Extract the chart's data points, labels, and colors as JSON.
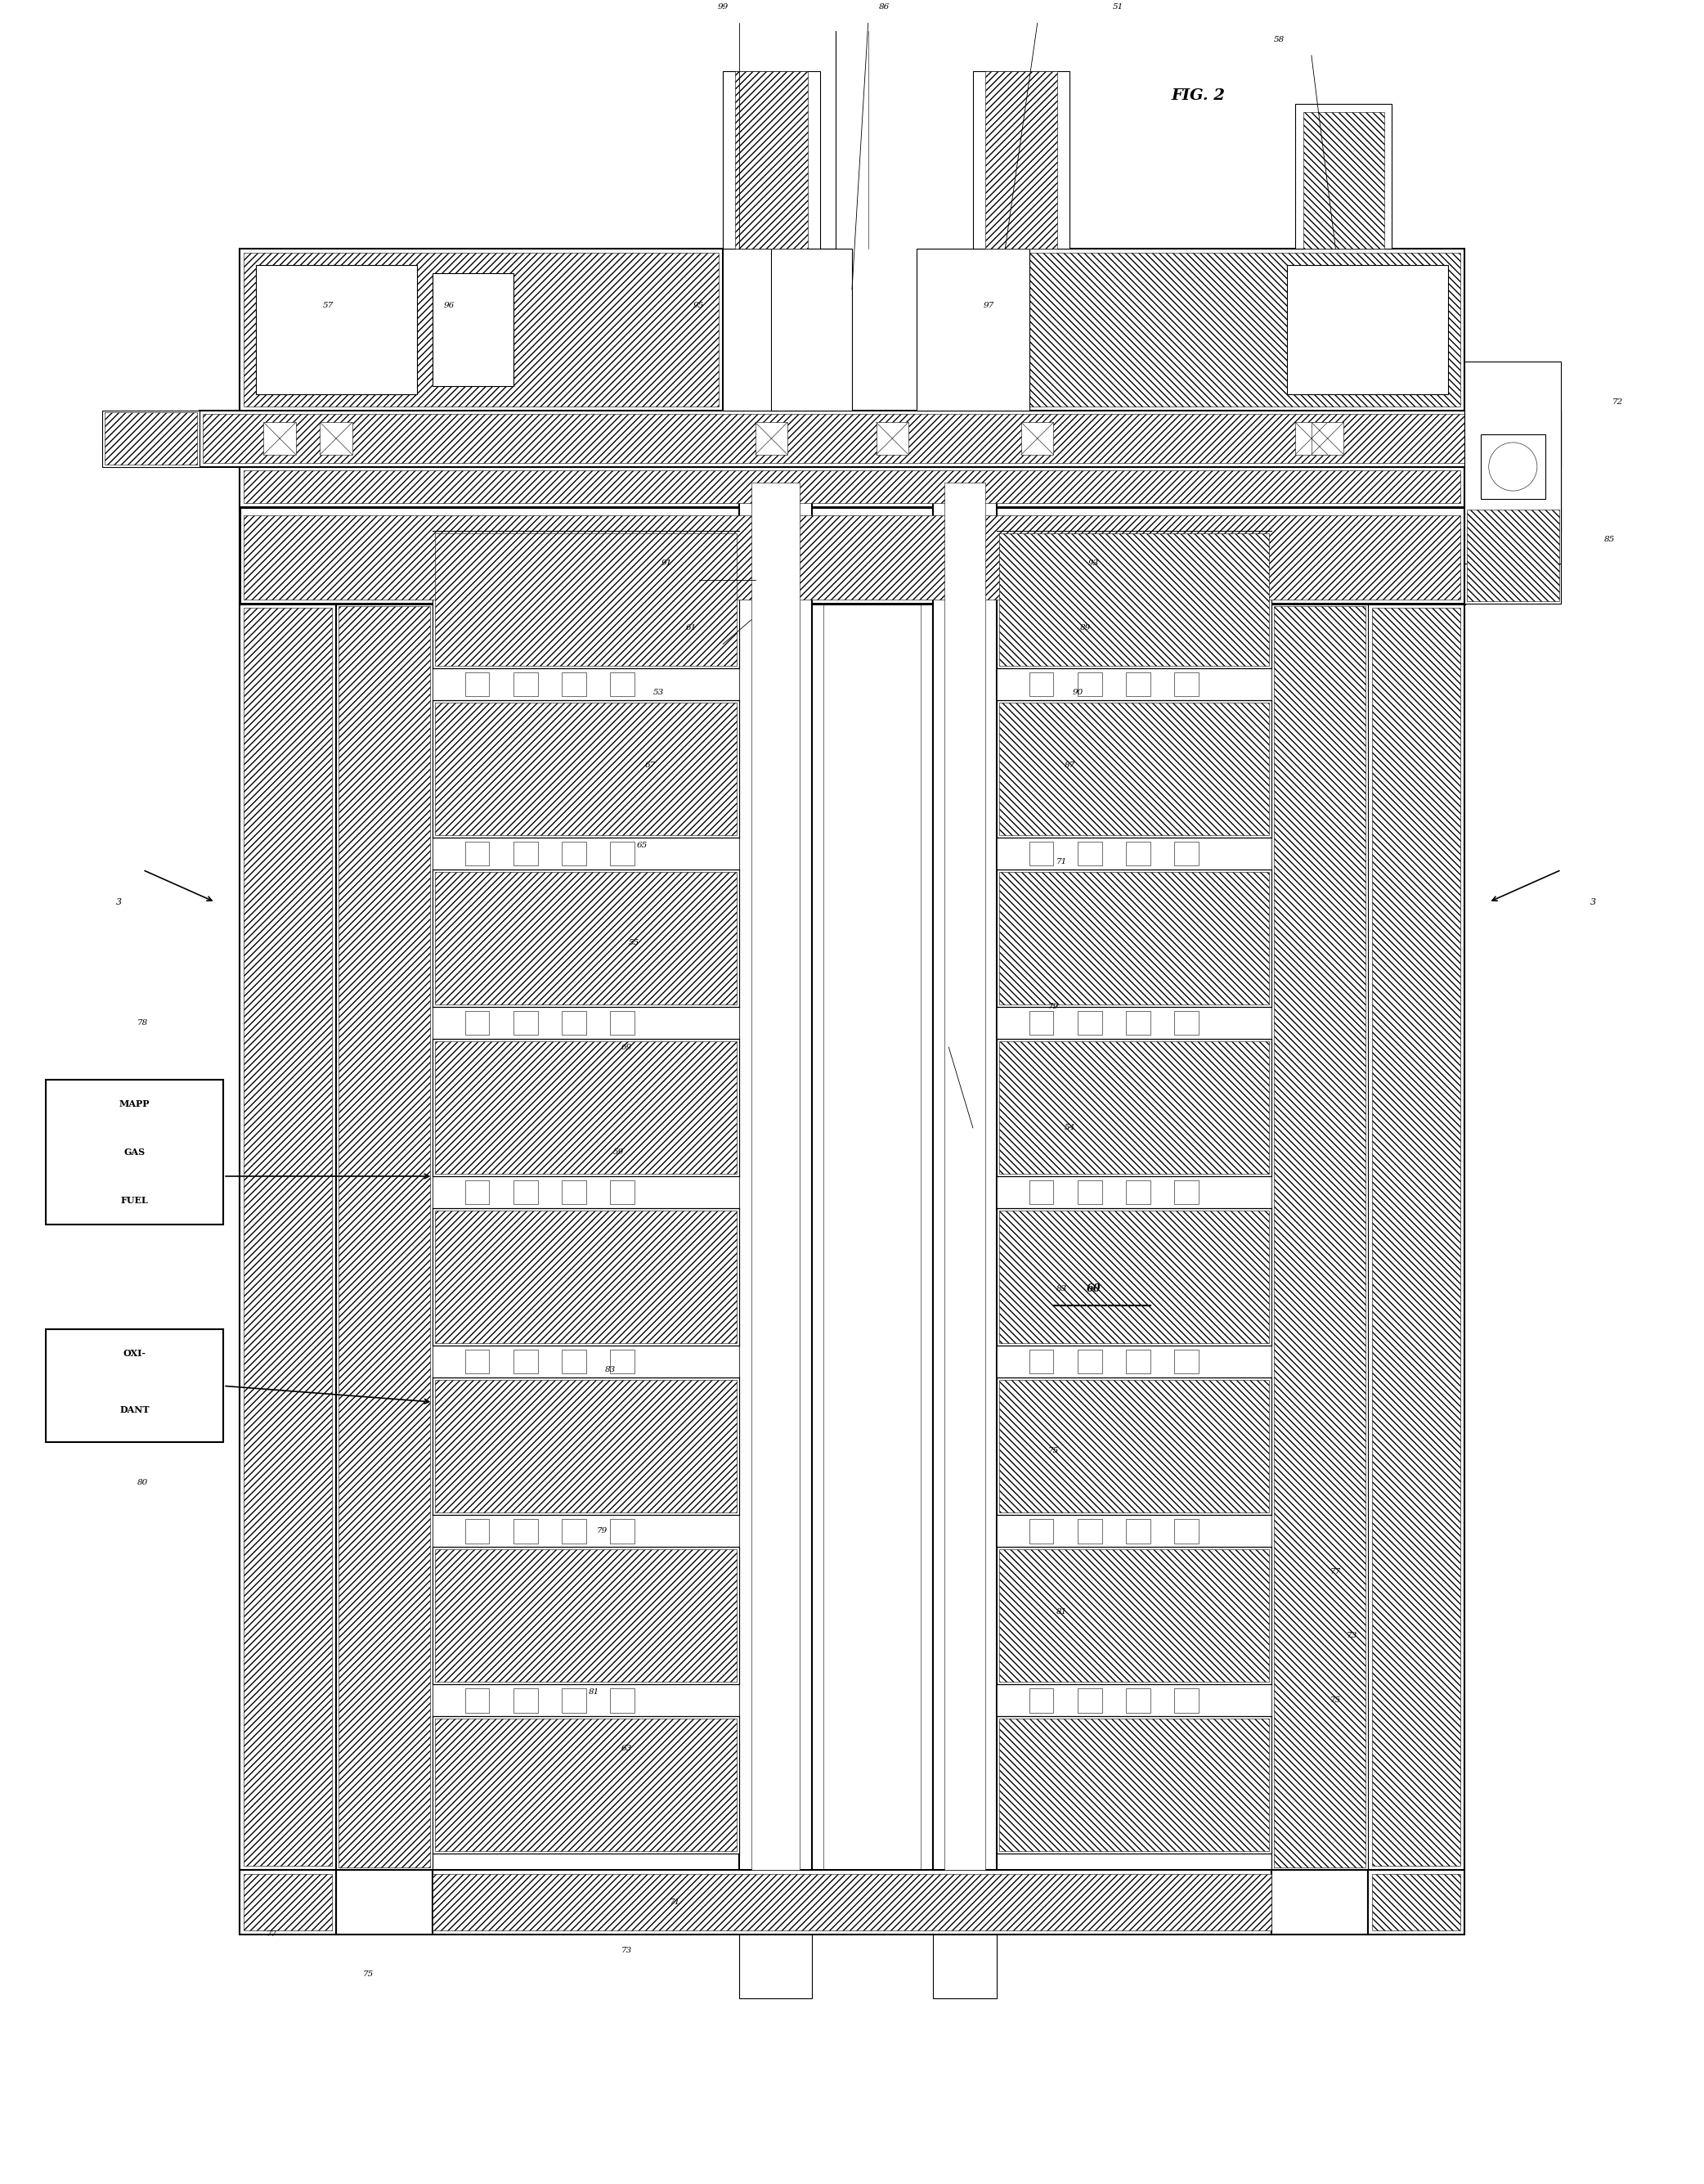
{
  "title": "FIG. 2",
  "bg_color": "#ffffff",
  "fig_width": 20.84,
  "fig_height": 26.7,
  "labels": {
    "fig_title": "FIG. 2",
    "99": "99",
    "86": "86",
    "51": "51",
    "58": "58",
    "57": "57",
    "96": "96",
    "95": "95",
    "97": "97",
    "85": "85",
    "72": "72",
    "91": "91",
    "61": "61",
    "93": "93",
    "89": "89",
    "90": "90",
    "53": "53",
    "67": "67",
    "65": "65",
    "55": "55",
    "69": "69",
    "59": "59",
    "83": "83",
    "79": "79",
    "81": "81",
    "63": "63",
    "87": "87",
    "71": "71",
    "54": "54",
    "60": "60",
    "75": "75",
    "73": "73",
    "77": "77",
    "78": "78",
    "80": "80",
    "3a": "3",
    "3b": "3",
    "mapp1": "MAPP",
    "mapp2": "GAS",
    "mapp3": "FUEL",
    "oxi1": "OXI-",
    "oxi2": "DANT"
  }
}
